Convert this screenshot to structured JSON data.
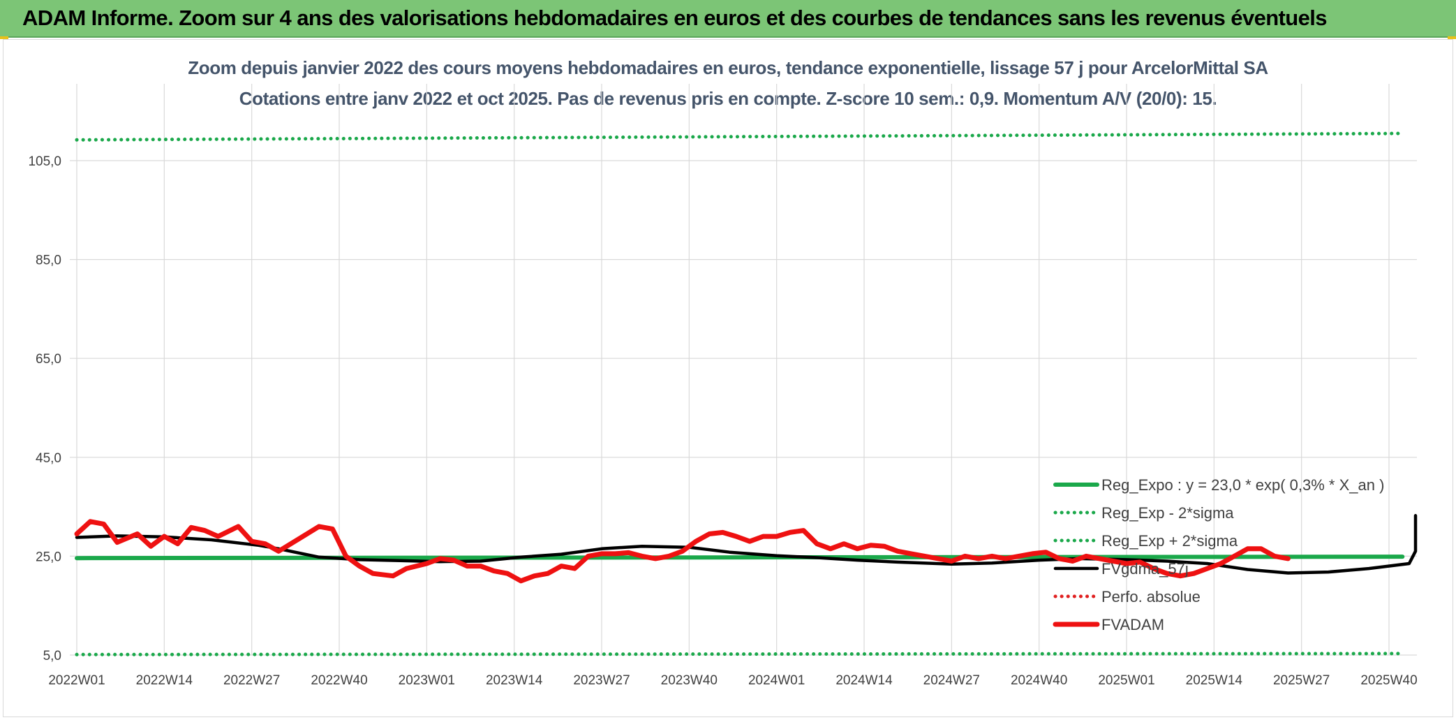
{
  "header": {
    "title": "ADAM Informe. Zoom sur 4 ans des valorisations hebdomadaires en euros et des courbes de tendances sans les revenus éventuels"
  },
  "chart_data": {
    "type": "line",
    "title": "Zoom depuis janvier 2022 des cours moyens hebdomadaires en euros, tendance exponentielle, lissage 57 j pour ArcelorMittal SA",
    "subtitle": "Cotations entre janv 2022 et oct 2025. Pas de revenus pris en compte. Z-score 10 sem.: 0,9. Momentum A/V (20/0): 15.",
    "xlabel": "",
    "ylabel": "",
    "ylim": [
      5,
      105
    ],
    "grid": true,
    "legend_position": "bottom-right",
    "x_tick_labels": [
      "2022W01",
      "2022W14",
      "2022W27",
      "2022W40",
      "2023W01",
      "2023W14",
      "2023W27",
      "2023W40",
      "2024W01",
      "2024W14",
      "2024W27",
      "2024W40",
      "2025W01",
      "2025W14",
      "2025W27",
      "2025W40"
    ],
    "y_tick_labels": [
      "5,0",
      "25,0",
      "45,0",
      "65,0",
      "85,0",
      "105,0"
    ],
    "y_ticks": [
      5,
      25,
      45,
      65,
      85,
      105
    ],
    "n_weeks": 198,
    "series": [
      {
        "name": "Reg_Expo : y = 23,0 * exp( 0,3% *  X_an )",
        "color": "#1aa84a",
        "style": "solid-thick",
        "points": [
          [
            0,
            24.6
          ],
          [
            197,
            24.9
          ]
        ]
      },
      {
        "name": "Reg_Exp - 2*sigma",
        "color": "#1aa84a",
        "style": "dotted",
        "points": [
          [
            0,
            5.1
          ],
          [
            197,
            5.3
          ]
        ]
      },
      {
        "name": "Reg_Exp + 2*sigma",
        "color": "#1aa84a",
        "style": "dotted",
        "points": [
          [
            0,
            109.2
          ],
          [
            197,
            110.5
          ]
        ]
      },
      {
        "name": "FVgdma_57j",
        "color": "#000000",
        "style": "solid-medium",
        "points": [
          [
            0,
            28.8
          ],
          [
            6,
            29.1
          ],
          [
            13,
            28.9
          ],
          [
            20,
            28.3
          ],
          [
            27,
            27.2
          ],
          [
            30,
            26.5
          ],
          [
            36,
            24.8
          ],
          [
            42,
            24.3
          ],
          [
            48,
            24.1
          ],
          [
            54,
            23.9
          ],
          [
            60,
            24.0
          ],
          [
            66,
            24.8
          ],
          [
            72,
            25.4
          ],
          [
            78,
            26.5
          ],
          [
            84,
            27.0
          ],
          [
            91,
            26.8
          ],
          [
            97,
            25.8
          ],
          [
            104,
            25.1
          ],
          [
            110,
            24.7
          ],
          [
            116,
            24.2
          ],
          [
            122,
            23.8
          ],
          [
            130,
            23.4
          ],
          [
            136,
            23.6
          ],
          [
            143,
            24.2
          ],
          [
            149,
            24.5
          ],
          [
            156,
            24.3
          ],
          [
            162,
            24.0
          ],
          [
            168,
            23.5
          ],
          [
            174,
            22.3
          ],
          [
            180,
            21.6
          ],
          [
            186,
            21.8
          ],
          [
            192,
            22.5
          ],
          [
            198,
            23.5
          ],
          [
            204,
            26.0
          ],
          [
            208,
            27.5
          ],
          [
            214,
            28.5
          ],
          [
            220,
            28.8
          ],
          [
            226,
            29.6
          ],
          [
            232,
            30.5
          ],
          [
            238,
            31.5
          ],
          [
            244,
            32.8
          ],
          [
            246,
            33.2
          ]
        ]
      },
      {
        "name": "Perfo. absolue",
        "color": "#e02020",
        "style": "dotted",
        "points": []
      },
      {
        "name": "FVADAM",
        "color": "#ee1111",
        "style": "solid-thick",
        "points": [
          [
            0,
            29.5
          ],
          [
            2,
            32.0
          ],
          [
            4,
            31.5
          ],
          [
            6,
            27.8
          ],
          [
            9,
            29.5
          ],
          [
            11,
            27.0
          ],
          [
            13,
            29.0
          ],
          [
            15,
            27.5
          ],
          [
            17,
            30.8
          ],
          [
            19,
            30.2
          ],
          [
            21,
            29.0
          ],
          [
            24,
            31.0
          ],
          [
            26,
            28.0
          ],
          [
            28,
            27.5
          ],
          [
            30,
            26.0
          ],
          [
            33,
            28.5
          ],
          [
            36,
            31.0
          ],
          [
            38,
            30.5
          ],
          [
            40,
            25.0
          ],
          [
            42,
            23.0
          ],
          [
            44,
            21.5
          ],
          [
            47,
            21.0
          ],
          [
            49,
            22.5
          ],
          [
            52,
            23.5
          ],
          [
            54,
            24.5
          ],
          [
            56,
            24.2
          ],
          [
            58,
            23.0
          ],
          [
            60,
            23.0
          ],
          [
            62,
            22.0
          ],
          [
            64,
            21.5
          ],
          [
            66,
            20.0
          ],
          [
            68,
            21.0
          ],
          [
            70,
            21.5
          ],
          [
            72,
            23.0
          ],
          [
            74,
            22.5
          ],
          [
            76,
            25.0
          ],
          [
            78,
            25.5
          ],
          [
            80,
            25.5
          ],
          [
            82,
            25.7
          ],
          [
            84,
            25.0
          ],
          [
            86,
            24.5
          ],
          [
            88,
            25.0
          ],
          [
            90,
            26.0
          ],
          [
            92,
            28.0
          ],
          [
            94,
            29.5
          ],
          [
            96,
            29.8
          ],
          [
            98,
            29.0
          ],
          [
            100,
            28.0
          ],
          [
            102,
            29.0
          ],
          [
            104,
            29.0
          ],
          [
            106,
            29.8
          ],
          [
            108,
            30.2
          ],
          [
            110,
            27.5
          ],
          [
            112,
            26.5
          ],
          [
            114,
            27.5
          ],
          [
            116,
            26.5
          ],
          [
            118,
            27.2
          ],
          [
            120,
            27.0
          ],
          [
            122,
            26.0
          ],
          [
            124,
            25.5
          ],
          [
            126,
            25.0
          ],
          [
            128,
            24.5
          ],
          [
            130,
            24.0
          ],
          [
            132,
            25.0
          ],
          [
            134,
            24.5
          ],
          [
            136,
            25.0
          ],
          [
            138,
            24.5
          ],
          [
            140,
            25.0
          ],
          [
            142,
            25.5
          ],
          [
            144,
            25.8
          ],
          [
            146,
            24.5
          ],
          [
            148,
            24.0
          ],
          [
            150,
            25.0
          ],
          [
            152,
            24.5
          ],
          [
            154,
            24.0
          ],
          [
            156,
            23.5
          ],
          [
            158,
            23.8
          ],
          [
            160,
            22.5
          ],
          [
            162,
            21.5
          ],
          [
            164,
            21.0
          ],
          [
            166,
            21.5
          ],
          [
            168,
            22.5
          ],
          [
            170,
            23.5
          ],
          [
            172,
            25.0
          ],
          [
            174,
            26.5
          ],
          [
            176,
            26.5
          ],
          [
            178,
            25.0
          ],
          [
            180,
            24.5
          ]
        ]
      }
    ]
  }
}
